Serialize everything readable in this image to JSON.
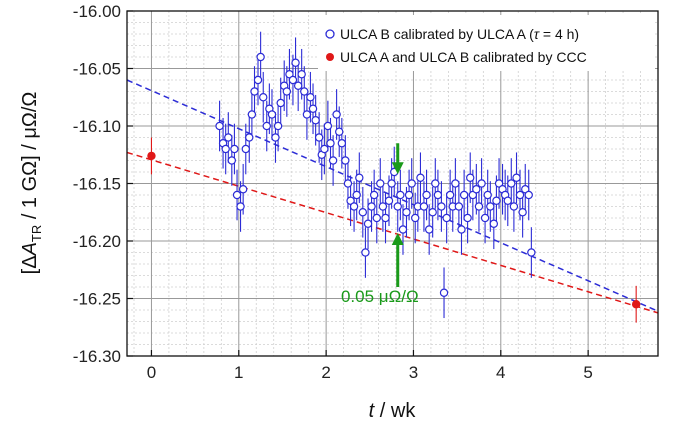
{
  "chart_data": {
    "type": "scatter",
    "xlabel": {
      "italic": "t",
      "rest": " / wk"
    },
    "ylabel": {
      "open": "[Δ",
      "var": "A",
      "sub": "TR",
      "rest": " / 1 GΩ] / μΩ/Ω"
    },
    "xlim": [
      -0.28,
      5.8
    ],
    "ylim": [
      -16.3,
      -16.0
    ],
    "xticks": [
      "0",
      "1",
      "2",
      "3",
      "4",
      "5"
    ],
    "xtick_values": [
      0,
      1,
      2,
      3,
      4,
      5
    ],
    "yticks": [
      "-16.00",
      "-16.05",
      "-16.10",
      "-16.15",
      "-16.20",
      "-16.25",
      "-16.30"
    ],
    "ytick_values": [
      -16.0,
      -16.05,
      -16.1,
      -16.15,
      -16.2,
      -16.25,
      -16.3
    ],
    "grid": true,
    "legend_position": "top-right",
    "colors": {
      "blue": "#2c2cd6",
      "red": "#e01818",
      "green": "#1a9a1a",
      "grid_major": "#999999",
      "grid_minor": "#d0d0d0"
    },
    "series": [
      {
        "name": "ULCA B calibrated by ULCA A (τ = 4 h)",
        "legend_text": "ULCA B calibrated by ULCA A (",
        "legend_tau": "τ",
        "legend_tail": " = 4 h)",
        "marker": "open-circle",
        "color": "#2c2cd6",
        "x": [
          0.78,
          0.82,
          0.85,
          0.88,
          0.92,
          0.95,
          0.98,
          1.02,
          1.05,
          1.08,
          1.12,
          1.15,
          1.18,
          1.22,
          1.25,
          1.28,
          1.32,
          1.35,
          1.38,
          1.42,
          1.45,
          1.48,
          1.52,
          1.55,
          1.58,
          1.62,
          1.65,
          1.68,
          1.72,
          1.75,
          1.78,
          1.82,
          1.85,
          1.88,
          1.92,
          1.95,
          1.98,
          2.02,
          2.05,
          2.08,
          2.12,
          2.15,
          2.18,
          2.22,
          2.25,
          2.28,
          2.32,
          2.35,
          2.38,
          2.42,
          2.45,
          2.48,
          2.52,
          2.55,
          2.58,
          2.62,
          2.65,
          2.68,
          2.72,
          2.75,
          2.78,
          2.82,
          2.85,
          2.88,
          2.92,
          2.95,
          2.98,
          3.02,
          3.05,
          3.08,
          3.12,
          3.15,
          3.18,
          3.22,
          3.25,
          3.28,
          3.32,
          3.35,
          3.38,
          3.42,
          3.45,
          3.48,
          3.52,
          3.55,
          3.58,
          3.62,
          3.65,
          3.68,
          3.72,
          3.75,
          3.78,
          3.82,
          3.85,
          3.88,
          3.92,
          3.95,
          3.98,
          4.02,
          4.05,
          4.08,
          4.12,
          4.15,
          4.18,
          4.22,
          4.25,
          4.28,
          4.32,
          4.35
        ],
        "y": [
          -16.1,
          -16.115,
          -16.12,
          -16.11,
          -16.13,
          -16.12,
          -16.16,
          -16.17,
          -16.155,
          -16.12,
          -16.11,
          -16.09,
          -16.07,
          -16.06,
          -16.04,
          -16.075,
          -16.1,
          -16.085,
          -16.09,
          -16.11,
          -16.1,
          -16.08,
          -16.065,
          -16.07,
          -16.055,
          -16.06,
          -16.045,
          -16.065,
          -16.055,
          -16.07,
          -16.09,
          -16.075,
          -16.085,
          -16.095,
          -16.11,
          -16.125,
          -16.12,
          -16.1,
          -16.115,
          -16.13,
          -16.09,
          -16.105,
          -16.115,
          -16.13,
          -16.15,
          -16.165,
          -16.17,
          -16.16,
          -16.145,
          -16.175,
          -16.21,
          -16.185,
          -16.17,
          -16.16,
          -16.18,
          -16.15,
          -16.17,
          -16.18,
          -16.165,
          -16.15,
          -16.14,
          -16.17,
          -16.16,
          -16.19,
          -16.175,
          -16.16,
          -16.15,
          -16.18,
          -16.17,
          -16.145,
          -16.17,
          -16.16,
          -16.19,
          -16.175,
          -16.15,
          -16.16,
          -16.17,
          -16.245,
          -16.18,
          -16.16,
          -16.17,
          -16.15,
          -16.17,
          -16.19,
          -16.16,
          -16.18,
          -16.145,
          -16.16,
          -16.155,
          -16.17,
          -16.15,
          -16.18,
          -16.16,
          -16.17,
          -16.185,
          -16.165,
          -16.15,
          -16.155,
          -16.16,
          -16.165,
          -16.15,
          -16.17,
          -16.145,
          -16.16,
          -16.175,
          -16.155,
          -16.16,
          -16.21
        ],
        "yerr": 0.022
      },
      {
        "name": "ULCA A and ULCA B calibrated by CCC",
        "legend_text": "ULCA A and ULCA B calibrated by CCC",
        "marker": "filled-circle",
        "color": "#e01818",
        "x": [
          0.0,
          5.55
        ],
        "y": [
          -16.126,
          -16.255
        ],
        "yerr": 0.016
      }
    ],
    "fit_lines": [
      {
        "color": "#2c2cd6",
        "x": [
          -0.28,
          5.8
        ],
        "y": [
          -16.06,
          -16.261
        ]
      },
      {
        "color": "#e01818",
        "x": [
          -0.28,
          5.8
        ],
        "y": [
          -16.123,
          -16.2625
        ]
      }
    ],
    "annotation": {
      "text": "0.05 μΩ/Ω",
      "color": "#1a9a1a",
      "arrow_x": 2.82,
      "down_from": -16.115,
      "down_to": -16.142,
      "up_from": -16.24,
      "up_to": -16.193,
      "label_x": 2.17,
      "label_y": -16.253
    }
  }
}
